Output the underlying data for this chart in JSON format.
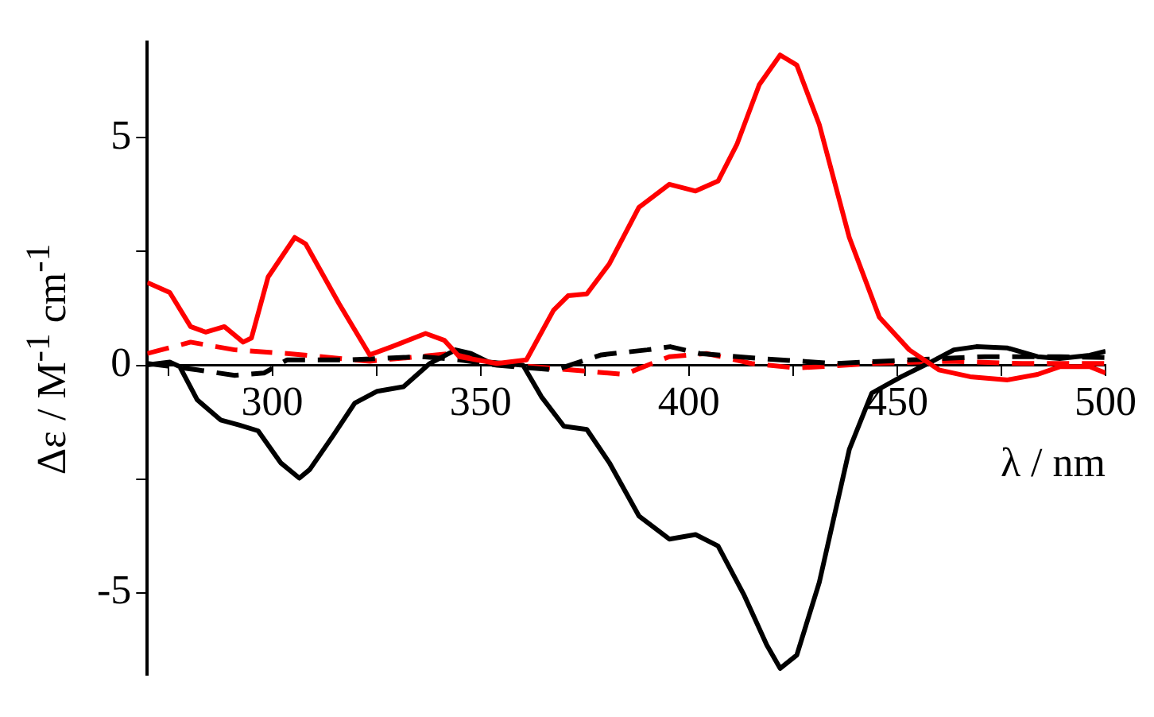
{
  "chart_data": {
    "type": "line",
    "xlabel": "λ / nm",
    "ylabel": "Δε / M$^{-1}$ cm$^{-1}$",
    "xlim": [
      270,
      500
    ],
    "xticks": [
      {
        "value": 275,
        "label": null
      },
      300,
      {
        "value": 325,
        "label": null
      },
      350,
      {
        "value": 375,
        "label": null
      },
      400,
      {
        "value": 425,
        "label": null
      },
      450,
      {
        "value": 475,
        "label": null
      },
      500
    ],
    "ylim": [
      -6.8,
      7.1
    ],
    "yticks": [
      -5,
      {
        "value": -2.5,
        "label": null
      },
      0,
      {
        "value": 2.5,
        "label": null
      },
      5
    ],
    "marker": "none",
    "legend": false,
    "series": [
      {
        "color": "#ff0000",
        "line_style": "solid",
        "x": [
          270,
          275.4,
          280.4,
          284,
          288.5,
          293,
          295,
          299,
          305.4,
          308,
          316,
          323.4,
          328.7,
          336.8,
          341.3,
          344.9,
          353.9,
          361,
          367.5,
          371,
          375.5,
          380.9,
          388,
          395.3,
          401.6,
          407,
          411.5,
          416.9,
          421.9,
          425.9,
          431.3,
          438.5,
          445.7,
          452.9,
          460,
          467.5,
          476.5,
          483.7,
          489,
          496.2,
          500
        ],
        "values": [
          1.82,
          1.6,
          0.85,
          0.73,
          0.85,
          0.51,
          0.6,
          1.94,
          2.81,
          2.67,
          1.36,
          0.23,
          0.41,
          0.7,
          0.55,
          0.19,
          0.04,
          0.12,
          1.21,
          1.53,
          1.57,
          2.23,
          3.47,
          3.98,
          3.83,
          4.05,
          4.85,
          6.17,
          6.82,
          6.6,
          5.29,
          2.81,
          1.06,
          0.34,
          -0.1,
          -0.25,
          -0.32,
          -0.2,
          -0.03,
          -0.03,
          -0.17
        ]
      },
      {
        "color": "#000000",
        "line_style": "solid",
        "x": [
          270,
          275.4,
          277.8,
          282,
          287.6,
          292,
          296.6,
          302,
          306.5,
          309,
          314.5,
          319.8,
          325.2,
          331.5,
          337.8,
          344,
          347.7,
          352,
          360.2,
          364.6,
          370,
          375.5,
          380.9,
          388,
          395.3,
          401.6,
          407,
          413.3,
          418.7,
          421.9,
          425.9,
          431.3,
          438.5,
          443.9,
          451,
          457.4,
          463.6,
          469,
          476.5,
          483.7,
          489,
          496.2,
          500
        ],
        "values": [
          0.01,
          0.07,
          -0.03,
          -0.76,
          -1.2,
          -1.31,
          -1.44,
          -2.14,
          -2.48,
          -2.29,
          -1.56,
          -0.83,
          -0.57,
          -0.47,
          0.04,
          0.34,
          0.26,
          0.07,
          0,
          -0.69,
          -1.34,
          -1.41,
          -2.14,
          -3.31,
          -3.82,
          -3.72,
          -3.97,
          -5.06,
          -6.15,
          -6.66,
          -6.37,
          -4.77,
          -1.85,
          -0.61,
          -0.25,
          0.04,
          0.34,
          0.41,
          0.38,
          0.19,
          0.15,
          0.22,
          0.31
        ]
      },
      {
        "color": "#000000",
        "line_style": "dashed",
        "x": [
          270,
          282,
          291,
          298,
          303.6,
          318,
          336,
          345,
          354,
          368,
          379,
          390,
          395.5,
          402.6,
          417,
          435,
          453,
          471,
          489,
          500
        ],
        "values": [
          0.04,
          -0.1,
          -0.22,
          -0.17,
          0.12,
          0.12,
          0.19,
          0.12,
          0,
          -0.1,
          0.23,
          0.34,
          0.41,
          0.26,
          0.15,
          0.04,
          0.12,
          0.19,
          0.19,
          0.17
        ]
      },
      {
        "color": "#ff0000",
        "line_style": "dashed",
        "x": [
          270,
          280.4,
          291,
          303.6,
          323.4,
          343,
          354,
          362.7,
          375.5,
          384.5,
          395.3,
          404.2,
          415,
          425.9,
          444,
          462,
          480,
          500
        ],
        "values": [
          0.26,
          0.51,
          0.34,
          0.26,
          0.09,
          0.26,
          0.04,
          -0.03,
          -0.13,
          -0.2,
          0.19,
          0.26,
          0.04,
          -0.06,
          0.04,
          0.09,
          0.04,
          0.04
        ]
      }
    ]
  }
}
